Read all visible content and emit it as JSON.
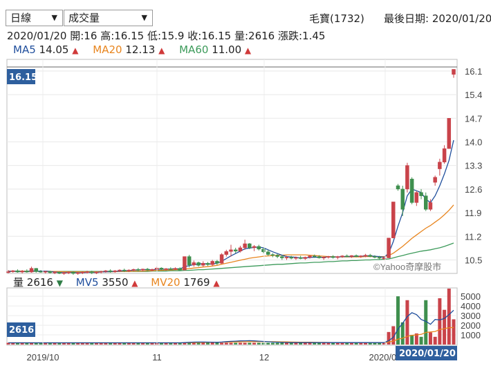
{
  "controls": {
    "period_select": "日線",
    "indicator_select": "成交量"
  },
  "stock": {
    "name_code": "毛寶(1732)",
    "latest_date_label": "最後日期: 2020/01/20"
  },
  "ohlc_line": {
    "date": "2020/01/20",
    "open": "開:16",
    "high": "高:16.15",
    "low": "低:15.9",
    "close": "收:16.15",
    "volume": "量:2616",
    "change": "漲跌:1.45"
  },
  "ma_legend": [
    {
      "label": "MA5",
      "value": "14.05",
      "color": "#1f4e9c",
      "arrow": "▲"
    },
    {
      "label": "MA20",
      "value": "12.13",
      "color": "#e8851e",
      "arrow": "▲"
    },
    {
      "label": "MA60",
      "value": "11.00",
      "color": "#3c9a5a",
      "arrow": "▲"
    }
  ],
  "vol_legend": {
    "label": "量",
    "value": "2616",
    "arrow_down": "▼",
    "mv5_label": "MV5",
    "mv5_value": "3550",
    "mv20_label": "MV20",
    "mv20_value": "1769",
    "arrow_up": "▲"
  },
  "price_badge": "16.15",
  "vol_badge": "2616",
  "date_badge": "2020/01/20",
  "watermark": "©Yahoo奇摩股市",
  "colors": {
    "up": "#c9434a",
    "down": "#3f8f4e",
    "ma5": "#1f4e9c",
    "ma20": "#e8851e",
    "ma60": "#3c9a5a",
    "badge": "#2e5f9e",
    "arrow_up": "#d03a3a",
    "arrow_down": "#2f7d46"
  },
  "chart_data": [
    {
      "type": "candlestick",
      "ylim": [
        10.1,
        16.2
      ],
      "yticks": [
        "16.1",
        "15.4",
        "14.7",
        "14.0",
        "13.3",
        "12.6",
        "11.9",
        "11.2",
        "10.5"
      ],
      "xticks": [
        "2019/10",
        "11",
        "12",
        "2020/01"
      ],
      "candles_ohlc": [
        [
          10.15,
          10.2,
          10.1,
          10.15
        ],
        [
          10.15,
          10.2,
          10.12,
          10.18
        ],
        [
          10.18,
          10.22,
          10.12,
          10.14
        ],
        [
          10.14,
          10.2,
          10.1,
          10.17
        ],
        [
          10.17,
          10.22,
          10.12,
          10.14
        ],
        [
          10.14,
          10.3,
          10.12,
          10.25
        ],
        [
          10.25,
          10.26,
          10.12,
          10.16
        ],
        [
          10.16,
          10.2,
          10.12,
          10.14
        ],
        [
          10.14,
          10.18,
          10.1,
          10.16
        ],
        [
          10.16,
          10.18,
          10.1,
          10.12
        ],
        [
          10.12,
          10.16,
          10.08,
          10.14
        ],
        [
          10.14,
          10.16,
          10.08,
          10.1
        ],
        [
          10.1,
          10.14,
          10.06,
          10.12
        ],
        [
          10.12,
          10.16,
          10.08,
          10.14
        ],
        [
          10.14,
          10.16,
          10.06,
          10.1
        ],
        [
          10.1,
          10.14,
          10.06,
          10.12
        ],
        [
          10.12,
          10.16,
          10.08,
          10.14
        ],
        [
          10.14,
          10.18,
          10.1,
          10.15
        ],
        [
          10.15,
          10.18,
          10.08,
          10.12
        ],
        [
          10.12,
          10.16,
          10.08,
          10.14
        ],
        [
          10.14,
          10.18,
          10.1,
          10.16
        ],
        [
          10.16,
          10.2,
          10.12,
          10.18
        ],
        [
          10.18,
          10.22,
          10.12,
          10.15
        ],
        [
          10.15,
          10.2,
          10.12,
          10.18
        ],
        [
          10.18,
          10.22,
          10.14,
          10.2
        ],
        [
          10.2,
          10.24,
          10.14,
          10.18
        ],
        [
          10.18,
          10.22,
          10.14,
          10.2
        ],
        [
          10.2,
          10.24,
          10.16,
          10.22
        ],
        [
          10.22,
          10.26,
          10.16,
          10.2
        ],
        [
          10.2,
          10.24,
          10.16,
          10.23
        ],
        [
          10.23,
          10.26,
          10.18,
          10.2
        ],
        [
          10.2,
          10.24,
          10.16,
          10.22
        ],
        [
          10.22,
          10.3,
          10.18,
          10.26
        ],
        [
          10.26,
          10.28,
          10.2,
          10.22
        ],
        [
          10.22,
          10.26,
          10.18,
          10.24
        ],
        [
          10.24,
          10.28,
          10.2,
          10.22
        ],
        [
          10.22,
          10.28,
          10.2,
          10.25
        ],
        [
          10.25,
          10.28,
          10.18,
          10.2
        ],
        [
          10.2,
          10.6,
          10.2,
          10.6
        ],
        [
          10.6,
          10.65,
          10.28,
          10.35
        ],
        [
          10.35,
          10.48,
          10.3,
          10.42
        ],
        [
          10.42,
          10.45,
          10.3,
          10.34
        ],
        [
          10.34,
          10.46,
          10.3,
          10.4
        ],
        [
          10.4,
          10.44,
          10.32,
          10.36
        ],
        [
          10.36,
          10.5,
          10.32,
          10.46
        ],
        [
          10.46,
          10.5,
          10.35,
          10.4
        ],
        [
          10.4,
          10.7,
          10.38,
          10.66
        ],
        [
          10.66,
          10.8,
          10.6,
          10.75
        ],
        [
          10.75,
          10.95,
          10.6,
          10.8
        ],
        [
          10.8,
          10.86,
          10.7,
          10.76
        ],
        [
          10.76,
          10.92,
          10.72,
          10.86
        ],
        [
          10.86,
          11.1,
          10.8,
          10.98
        ],
        [
          10.98,
          11.0,
          10.82,
          10.86
        ],
        [
          10.86,
          10.94,
          10.76,
          10.9
        ],
        [
          10.9,
          10.95,
          10.78,
          10.82
        ],
        [
          10.82,
          10.86,
          10.7,
          10.74
        ],
        [
          10.74,
          10.8,
          10.62,
          10.66
        ],
        [
          10.66,
          10.7,
          10.58,
          10.64
        ],
        [
          10.64,
          10.68,
          10.55,
          10.6
        ],
        [
          10.6,
          10.64,
          10.5,
          10.56
        ],
        [
          10.56,
          10.62,
          10.5,
          10.58
        ],
        [
          10.58,
          10.62,
          10.52,
          10.55
        ],
        [
          10.55,
          10.6,
          10.5,
          10.57
        ],
        [
          10.57,
          10.62,
          10.52,
          10.54
        ],
        [
          10.54,
          10.6,
          10.5,
          10.58
        ],
        [
          10.58,
          10.64,
          10.54,
          10.62
        ],
        [
          10.62,
          10.66,
          10.56,
          10.6
        ],
        [
          10.6,
          10.64,
          10.54,
          10.56
        ],
        [
          10.56,
          10.6,
          10.5,
          10.58
        ],
        [
          10.58,
          10.62,
          10.54,
          10.6
        ],
        [
          10.6,
          10.64,
          10.54,
          10.57
        ],
        [
          10.57,
          10.62,
          10.52,
          10.6
        ],
        [
          10.6,
          10.64,
          10.56,
          10.62
        ],
        [
          10.62,
          10.66,
          10.58,
          10.6
        ],
        [
          10.6,
          10.64,
          10.56,
          10.63
        ],
        [
          10.63,
          10.66,
          10.58,
          10.6
        ],
        [
          10.6,
          10.64,
          10.56,
          10.62
        ],
        [
          10.62,
          10.68,
          10.58,
          10.64
        ],
        [
          10.64,
          10.68,
          10.58,
          10.6
        ],
        [
          10.6,
          10.64,
          10.55,
          10.58
        ],
        [
          10.58,
          10.62,
          10.52,
          10.55
        ],
        [
          10.55,
          10.6,
          10.5,
          10.56
        ],
        [
          10.56,
          11.15,
          10.55,
          11.15
        ],
        [
          11.15,
          12.22,
          11.15,
          12.22
        ],
        [
          12.7,
          12.75,
          12.55,
          12.6
        ],
        [
          12.6,
          12.7,
          11.8,
          12.0
        ],
        [
          12.6,
          13.38,
          12.5,
          13.3
        ],
        [
          12.9,
          12.95,
          12.15,
          12.2
        ],
        [
          12.2,
          12.55,
          12.1,
          12.5
        ],
        [
          12.5,
          12.6,
          12.3,
          12.4
        ],
        [
          12.4,
          12.5,
          11.95,
          12.0
        ],
        [
          12.0,
          12.3,
          11.95,
          12.2
        ],
        [
          12.8,
          13.0,
          12.7,
          12.95
        ],
        [
          13.2,
          13.5,
          13.0,
          13.4
        ],
        [
          13.4,
          13.9,
          13.35,
          13.8
        ],
        [
          13.8,
          14.7,
          13.8,
          14.7
        ],
        [
          16.0,
          16.15,
          15.9,
          16.15
        ]
      ],
      "ma5": [
        10.16,
        10.17,
        10.16,
        10.16,
        10.16,
        10.18,
        10.17,
        10.17,
        10.17,
        10.16,
        10.14,
        10.13,
        10.12,
        10.13,
        10.13,
        10.12,
        10.12,
        10.13,
        10.13,
        10.13,
        10.14,
        10.15,
        10.15,
        10.16,
        10.17,
        10.18,
        10.18,
        10.2,
        10.2,
        10.21,
        10.21,
        10.21,
        10.22,
        10.22,
        10.23,
        10.23,
        10.24,
        10.23,
        10.3,
        10.33,
        10.36,
        10.38,
        10.39,
        10.38,
        10.38,
        10.4,
        10.46,
        10.54,
        10.62,
        10.69,
        10.76,
        10.83,
        10.85,
        10.87,
        10.88,
        10.86,
        10.8,
        10.74,
        10.69,
        10.64,
        10.6,
        10.59,
        10.58,
        10.56,
        10.56,
        10.57,
        10.58,
        10.58,
        10.58,
        10.59,
        10.59,
        10.59,
        10.6,
        10.6,
        10.6,
        10.61,
        10.61,
        10.62,
        10.62,
        10.61,
        10.6,
        10.58,
        10.7,
        11.05,
        11.5,
        11.9,
        12.4,
        12.6,
        12.55,
        12.5,
        12.3,
        12.2,
        12.4,
        12.7,
        13.05,
        13.45,
        14.05
      ],
      "ma20": [
        10.17,
        10.17,
        10.17,
        10.17,
        10.17,
        10.17,
        10.17,
        10.17,
        10.17,
        10.16,
        10.16,
        10.16,
        10.15,
        10.15,
        10.15,
        10.15,
        10.15,
        10.15,
        10.15,
        10.15,
        10.15,
        10.15,
        10.15,
        10.15,
        10.16,
        10.16,
        10.16,
        10.17,
        10.17,
        10.17,
        10.18,
        10.18,
        10.19,
        10.19,
        10.2,
        10.2,
        10.21,
        10.21,
        10.23,
        10.24,
        10.26,
        10.27,
        10.29,
        10.3,
        10.32,
        10.34,
        10.37,
        10.4,
        10.43,
        10.46,
        10.49,
        10.52,
        10.55,
        10.57,
        10.59,
        10.61,
        10.62,
        10.63,
        10.64,
        10.64,
        10.65,
        10.65,
        10.65,
        10.65,
        10.65,
        10.64,
        10.63,
        10.62,
        10.61,
        10.6,
        10.6,
        10.59,
        10.59,
        10.59,
        10.59,
        10.59,
        10.59,
        10.6,
        10.6,
        10.6,
        10.6,
        10.6,
        10.63,
        10.7,
        10.8,
        10.9,
        11.02,
        11.14,
        11.24,
        11.34,
        11.44,
        11.52,
        11.62,
        11.72,
        11.84,
        11.97,
        12.13
      ],
      "ma60": [
        10.16,
        10.16,
        10.16,
        10.16,
        10.16,
        10.16,
        10.16,
        10.16,
        10.16,
        10.16,
        10.16,
        10.16,
        10.16,
        10.16,
        10.16,
        10.16,
        10.16,
        10.16,
        10.16,
        10.16,
        10.16,
        10.16,
        10.16,
        10.16,
        10.16,
        10.16,
        10.16,
        10.16,
        10.16,
        10.16,
        10.16,
        10.17,
        10.17,
        10.17,
        10.17,
        10.18,
        10.18,
        10.18,
        10.19,
        10.19,
        10.2,
        10.21,
        10.21,
        10.22,
        10.23,
        10.24,
        10.25,
        10.26,
        10.27,
        10.28,
        10.29,
        10.3,
        10.31,
        10.32,
        10.33,
        10.34,
        10.35,
        10.36,
        10.37,
        10.37,
        10.38,
        10.39,
        10.4,
        10.41,
        10.41,
        10.42,
        10.43,
        10.43,
        10.44,
        10.45,
        10.45,
        10.46,
        10.47,
        10.47,
        10.48,
        10.48,
        10.49,
        10.5,
        10.5,
        10.51,
        10.51,
        10.52,
        10.53,
        10.56,
        10.6,
        10.63,
        10.67,
        10.7,
        10.73,
        10.76,
        10.78,
        10.8,
        10.83,
        10.86,
        10.9,
        10.95,
        11.0
      ]
    },
    {
      "type": "bar",
      "ylim": [
        0,
        5800
      ],
      "yticks": [
        "5000",
        "4000",
        "3000",
        "2000",
        "1000"
      ],
      "spike_volumes": [
        [
          82,
          1300
        ],
        [
          83,
          1900
        ],
        [
          84,
          5000
        ],
        [
          85,
          2300
        ],
        [
          86,
          4600
        ],
        [
          87,
          1000
        ],
        [
          88,
          1150
        ],
        [
          89,
          800
        ],
        [
          90,
          4600
        ],
        [
          91,
          1250
        ],
        [
          92,
          800
        ],
        [
          93,
          4800
        ],
        [
          94,
          3600
        ],
        [
          95,
          5800
        ],
        [
          96,
          2616
        ]
      ],
      "mv5": [
        180,
        180,
        180,
        180,
        180,
        180,
        180,
        180,
        180,
        180,
        180,
        180,
        180,
        180,
        180,
        180,
        180,
        180,
        180,
        180,
        180,
        180,
        180,
        180,
        180,
        180,
        180,
        180,
        180,
        180,
        180,
        180,
        180,
        180,
        180,
        180,
        180,
        180,
        200,
        230,
        250,
        260,
        260,
        250,
        240,
        230,
        260,
        300,
        330,
        350,
        380,
        390,
        400,
        380,
        350,
        320,
        290,
        260,
        240,
        220,
        210,
        200,
        200,
        200,
        200,
        200,
        200,
        200,
        200,
        200,
        200,
        200,
        200,
        200,
        200,
        200,
        200,
        200,
        200,
        200,
        200,
        200,
        400,
        750,
        1600,
        2200,
        2900,
        3300,
        3100,
        2600,
        2400,
        2100,
        2600,
        2550,
        2700,
        3100,
        3550
      ],
      "mv20": [
        180,
        180,
        180,
        180,
        180,
        180,
        180,
        180,
        180,
        180,
        180,
        180,
        180,
        180,
        180,
        180,
        180,
        180,
        180,
        180,
        180,
        180,
        180,
        180,
        180,
        180,
        180,
        180,
        180,
        180,
        180,
        180,
        180,
        180,
        180,
        180,
        180,
        180,
        185,
        190,
        200,
        210,
        215,
        220,
        225,
        230,
        240,
        250,
        260,
        270,
        280,
        290,
        300,
        300,
        300,
        300,
        295,
        290,
        285,
        280,
        270,
        260,
        250,
        245,
        240,
        235,
        230,
        225,
        220,
        215,
        210,
        205,
        200,
        200,
        200,
        200,
        200,
        200,
        200,
        200,
        200,
        200,
        260,
        350,
        550,
        650,
        850,
        950,
        1000,
        1050,
        1250,
        1300,
        1350,
        1550,
        1650,
        1750,
        1769
      ]
    }
  ]
}
